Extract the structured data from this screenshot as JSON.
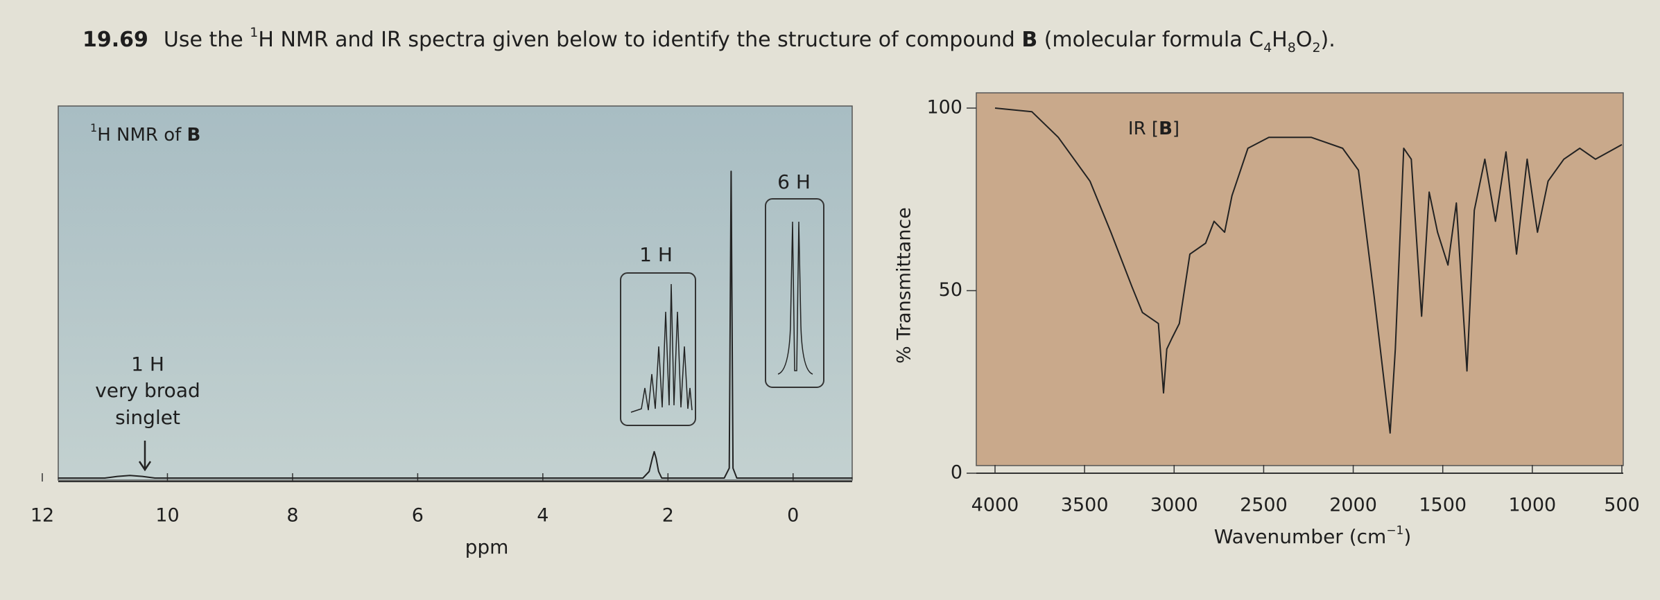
{
  "header": {
    "number": "19.69",
    "text": [
      "Use the ",
      "1",
      "H NMR and IR spectra given below to identify the structure of compound ",
      "B",
      " (molecular formula C",
      "4",
      "H",
      "8",
      "O",
      "2",
      ")."
    ]
  },
  "chart_data": [
    {
      "type": "line",
      "title": [
        "1",
        "H NMR of ",
        "B"
      ],
      "xlabel": "ppm",
      "xlim": [
        12,
        -1
      ],
      "ylim": [
        0,
        100
      ],
      "xticks": [
        12,
        10,
        8,
        6,
        4,
        2,
        0
      ],
      "color": "#222222",
      "x": [
        11.75,
        11.0,
        10.8,
        10.6,
        10.4,
        10.2,
        2.4,
        2.3,
        2.25,
        2.22,
        2.19,
        2.15,
        2.1,
        1.1,
        1.02,
        0.99,
        0.96,
        0.9,
        -0.95
      ],
      "values": [
        0,
        0,
        0.5,
        0.8,
        0.5,
        0,
        0,
        2,
        6,
        8,
        6,
        2,
        0,
        0,
        3,
        93,
        3,
        0,
        0
      ],
      "annotations": [
        "1 H",
        "very broad",
        "singlet",
        "1 H",
        "6 H"
      ]
    },
    {
      "type": "line",
      "title": [
        "IR [",
        "B",
        "]"
      ],
      "xlabel": [
        "Wavenumber (cm",
        "−1",
        ")"
      ],
      "ylabel": "% Transmittance",
      "xlim": [
        4000,
        500
      ],
      "ylim": [
        0,
        100
      ],
      "xticks": [
        4000,
        3500,
        3000,
        2500,
        2000,
        1500,
        1000,
        500
      ],
      "yticks": [
        0,
        50,
        100
      ],
      "color": "#222222",
      "x": [
        4000,
        3794,
        3647,
        3470,
        3353,
        3235,
        3177,
        3088,
        3059,
        3041,
        3012,
        2971,
        2912,
        2824,
        2777,
        2718,
        2677,
        2588,
        2471,
        2235,
        2059,
        1971,
        1882,
        1794,
        1765,
        1718,
        1676,
        1618,
        1576,
        1529,
        1471,
        1424,
        1365,
        1324,
        1265,
        1206,
        1147,
        1088,
        1029,
        971,
        912,
        824,
        735,
        647,
        500
      ],
      "values": [
        100,
        99,
        92,
        80,
        66,
        51,
        44,
        41,
        22,
        34,
        37,
        41,
        60,
        63,
        69,
        66,
        76,
        89,
        92,
        92,
        89,
        83,
        48,
        11,
        34,
        89,
        86,
        43,
        77,
        66,
        57,
        74,
        28,
        72,
        86,
        69,
        88,
        60,
        86,
        66,
        80,
        86,
        89,
        86,
        90
      ]
    }
  ]
}
